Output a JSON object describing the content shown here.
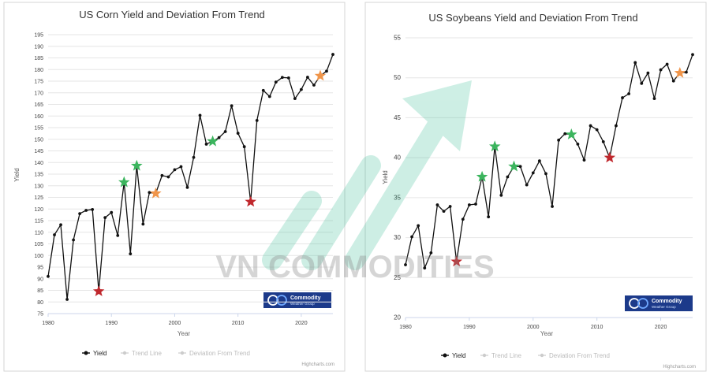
{
  "watermark": {
    "text": "VN COMMODITIES"
  },
  "badge": {
    "line1": "Commodity",
    "line2": "Weather Group"
  },
  "credit": "Highcharts.com",
  "chart_data": [
    {
      "type": "line",
      "title": "US Corn Yield and Deviation From Trend",
      "xlabel": "Year",
      "ylabel": "Yield",
      "xlim": [
        1980,
        2025
      ],
      "ylim": [
        75,
        195
      ],
      "yticks": [
        "75",
        "80",
        "85",
        "90",
        "95",
        "100",
        "105",
        "110",
        "115",
        "120",
        "125",
        "130",
        "135",
        "140",
        "145",
        "150",
        "155",
        "160",
        "165",
        "170",
        "175",
        "180",
        "185",
        "190",
        "195"
      ],
      "xticks": [
        "1980",
        "1990",
        "2000",
        "2010",
        "2020"
      ],
      "legend": [
        "Yield",
        "Trend Line",
        "Deviation From Trend"
      ],
      "legend_position": "bottom",
      "series": [
        {
          "name": "Yield",
          "x": [
            1980,
            1981,
            1982,
            1983,
            1984,
            1985,
            1986,
            1987,
            1988,
            1989,
            1990,
            1991,
            1992,
            1993,
            1994,
            1995,
            1996,
            1997,
            1998,
            1999,
            2000,
            2001,
            2002,
            2003,
            2004,
            2005,
            2006,
            2007,
            2008,
            2009,
            2010,
            2011,
            2012,
            2013,
            2014,
            2015,
            2016,
            2017,
            2018,
            2019,
            2020,
            2021,
            2022,
            2023,
            2024,
            2025
          ],
          "y": [
            91,
            108.9,
            113.2,
            81.1,
            106.7,
            118,
            119.4,
            119.8,
            84.6,
            116.3,
            118.5,
            108.6,
            131.5,
            100.7,
            138.6,
            113.5,
            127.1,
            126.7,
            134.4,
            133.8,
            136.9,
            138.2,
            129.3,
            142.2,
            160.3,
            147.9,
            149.1,
            150.7,
            153.3,
            164.4,
            152.6,
            146.8,
            123.1,
            158.1,
            171,
            168.4,
            174.6,
            176.6,
            176.4,
            167.5,
            171.4,
            176.7,
            173.3,
            177.3,
            179.3,
            186.5
          ]
        }
      ],
      "deviation_markers": [
        {
          "x": 1988,
          "y": 84.6,
          "color": "#c0282d"
        },
        {
          "x": 1992,
          "y": 131.5,
          "color": "#3cb55e"
        },
        {
          "x": 1994,
          "y": 138.6,
          "color": "#3cb55e"
        },
        {
          "x": 1997,
          "y": 126.7,
          "color": "#f0954a"
        },
        {
          "x": 2006,
          "y": 149.1,
          "color": "#3cb55e"
        },
        {
          "x": 2012,
          "y": 123.1,
          "color": "#c0282d"
        },
        {
          "x": 2023,
          "y": 177.3,
          "color": "#f0954a"
        }
      ]
    },
    {
      "type": "line",
      "title": "US Soybeans Yield and Deviation From Trend",
      "xlabel": "Year",
      "ylabel": "Yield",
      "xlim": [
        1980,
        2025
      ],
      "ylim": [
        20,
        55
      ],
      "yticks": [
        "20",
        "25",
        "30",
        "35",
        "40",
        "45",
        "50",
        "55"
      ],
      "xticks": [
        "1980",
        "1990",
        "2000",
        "2010",
        "2020"
      ],
      "legend": [
        "Yield",
        "Trend Line",
        "Deviation From Trend"
      ],
      "legend_position": "bottom",
      "series": [
        {
          "name": "Yield",
          "x": [
            1980,
            1981,
            1982,
            1983,
            1984,
            1985,
            1986,
            1987,
            1988,
            1989,
            1990,
            1991,
            1992,
            1993,
            1994,
            1995,
            1996,
            1997,
            1998,
            1999,
            2000,
            2001,
            2002,
            2003,
            2004,
            2005,
            2006,
            2007,
            2008,
            2009,
            2010,
            2011,
            2012,
            2013,
            2014,
            2015,
            2016,
            2017,
            2018,
            2019,
            2020,
            2021,
            2022,
            2023,
            2024,
            2025
          ],
          "y": [
            26.6,
            30.1,
            31.5,
            26.2,
            28.1,
            34.1,
            33.3,
            33.9,
            27,
            32.3,
            34.1,
            34.2,
            37.6,
            32.6,
            41.4,
            35.3,
            37.6,
            38.9,
            38.9,
            36.6,
            38.1,
            39.6,
            38,
            33.9,
            42.2,
            43,
            42.9,
            41.7,
            39.7,
            44,
            43.5,
            42,
            40,
            44,
            47.5,
            48,
            51.9,
            49.3,
            50.6,
            47.4,
            51,
            51.7,
            49.6,
            50.6,
            50.7,
            52.9
          ]
        }
      ],
      "deviation_markers": [
        {
          "x": 1988,
          "y": 27,
          "color": "#c0282d"
        },
        {
          "x": 1992,
          "y": 37.6,
          "color": "#3cb55e"
        },
        {
          "x": 1994,
          "y": 41.4,
          "color": "#3cb55e"
        },
        {
          "x": 1997,
          "y": 38.9,
          "color": "#3cb55e"
        },
        {
          "x": 2006,
          "y": 42.9,
          "color": "#3cb55e"
        },
        {
          "x": 2012,
          "y": 40,
          "color": "#c0282d"
        },
        {
          "x": 2023,
          "y": 50.6,
          "color": "#f0954a"
        }
      ]
    }
  ]
}
